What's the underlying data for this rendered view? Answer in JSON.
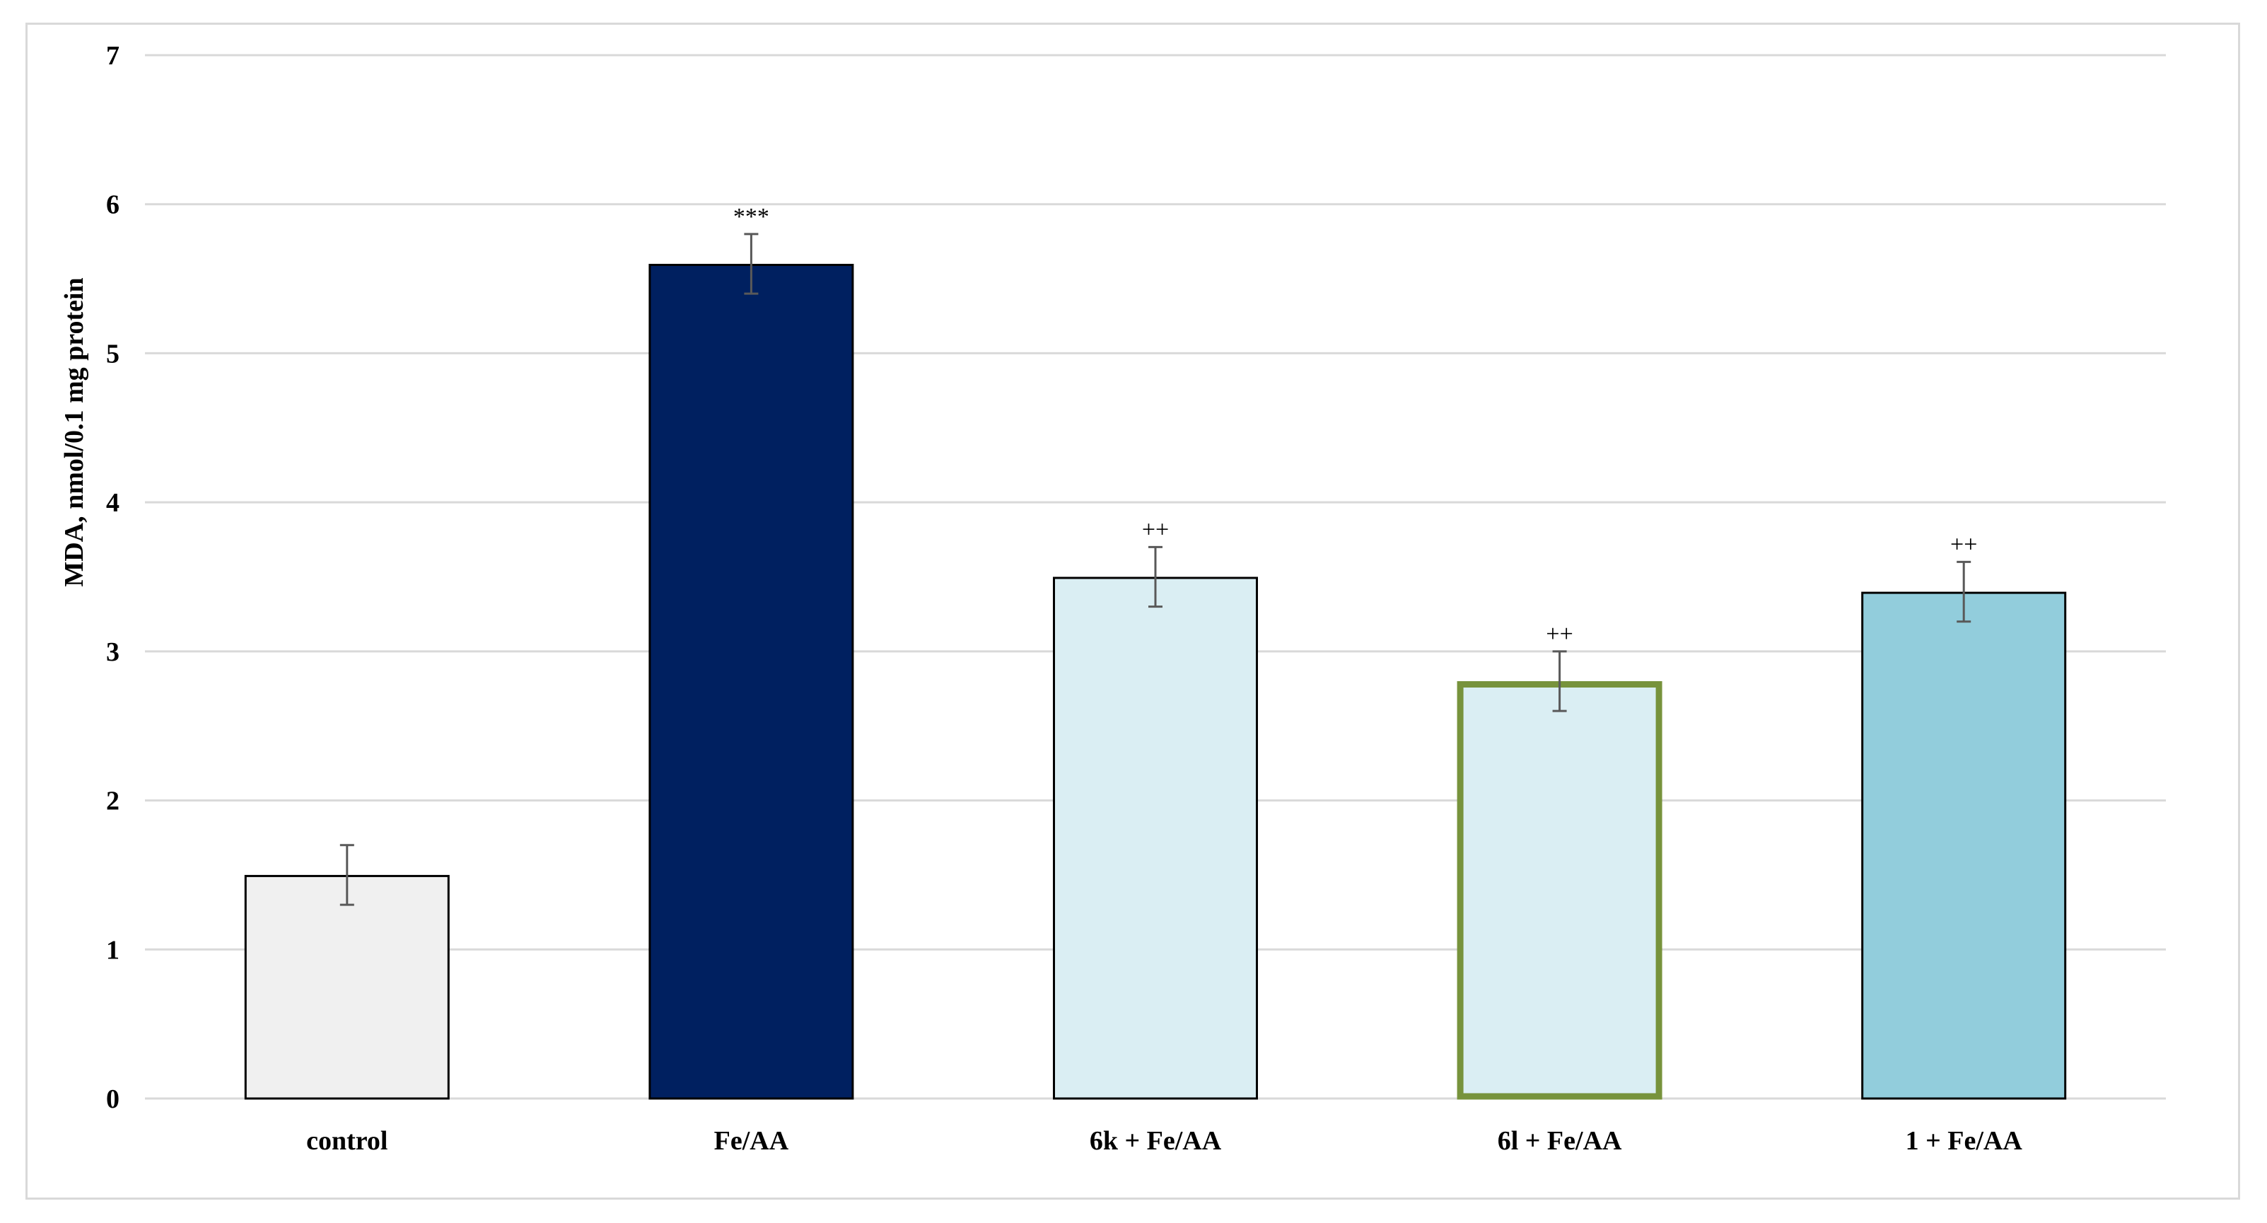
{
  "chart_data": {
    "type": "bar",
    "title": "",
    "xlabel": "",
    "ylabel": "MDA, nmol/0.1 mg protein",
    "ylim": [
      0,
      7
    ],
    "yticks": [
      0,
      1,
      2,
      3,
      4,
      5,
      6,
      7
    ],
    "grid": true,
    "legend": "none",
    "categories": [
      "control",
      "Fe/AA",
      "6k + Fe/AA",
      "6l + Fe/AA",
      "1 + Fe/AA"
    ],
    "values": [
      1.5,
      5.6,
      3.5,
      2.8,
      3.4
    ],
    "errors": [
      0.2,
      0.2,
      0.2,
      0.2,
      0.2
    ],
    "annotations": [
      "",
      "***",
      "++",
      "++",
      "++"
    ],
    "bar_colors": [
      "#f0f0f0",
      "#002060",
      "#daeef3",
      "#daeef3",
      "#92cddc"
    ],
    "bar_edge_colors": [
      "#000000",
      "#000000",
      "#000000",
      "#77933c",
      "#000000"
    ]
  }
}
